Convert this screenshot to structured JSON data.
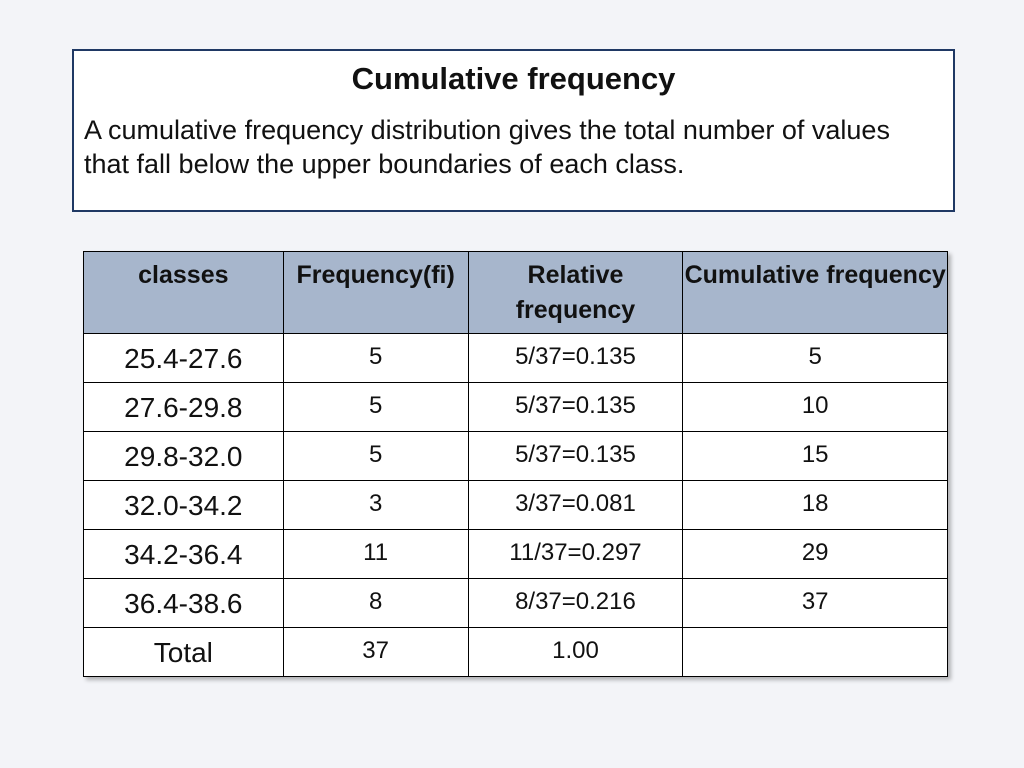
{
  "intro": {
    "title": "Cumulative frequency",
    "description": "A cumulative frequency distribution gives the total number of values that fall below the upper boundaries of each class."
  },
  "table": {
    "headers": {
      "classes": "classes",
      "frequency": "Frequency(fi)",
      "relative": "Relative frequency",
      "cumulative": "Cumulative frequency"
    },
    "rows": [
      {
        "classes": "25.4-27.6",
        "frequency": "5",
        "relative": "5/37=0.135",
        "cumulative": "5"
      },
      {
        "classes": "27.6-29.8",
        "frequency": "5",
        "relative": "5/37=0.135",
        "cumulative": "10"
      },
      {
        "classes": "29.8-32.0",
        "frequency": "5",
        "relative": "5/37=0.135",
        "cumulative": "15"
      },
      {
        "classes": "32.0-34.2",
        "frequency": "3",
        "relative": "3/37=0.081",
        "cumulative": "18"
      },
      {
        "classes": "34.2-36.4",
        "frequency": "11",
        "relative": "11/37=0.297",
        "cumulative": "29"
      },
      {
        "classes": "36.4-38.6",
        "frequency": "8",
        "relative": "8/37=0.216",
        "cumulative": "37"
      },
      {
        "classes": "Total",
        "frequency": "37",
        "relative": "1.00",
        "cumulative": ""
      }
    ]
  },
  "colors": {
    "header_fill": "#a7b6cc",
    "box_border": "#1f3864",
    "background": "#f3f4f8"
  }
}
